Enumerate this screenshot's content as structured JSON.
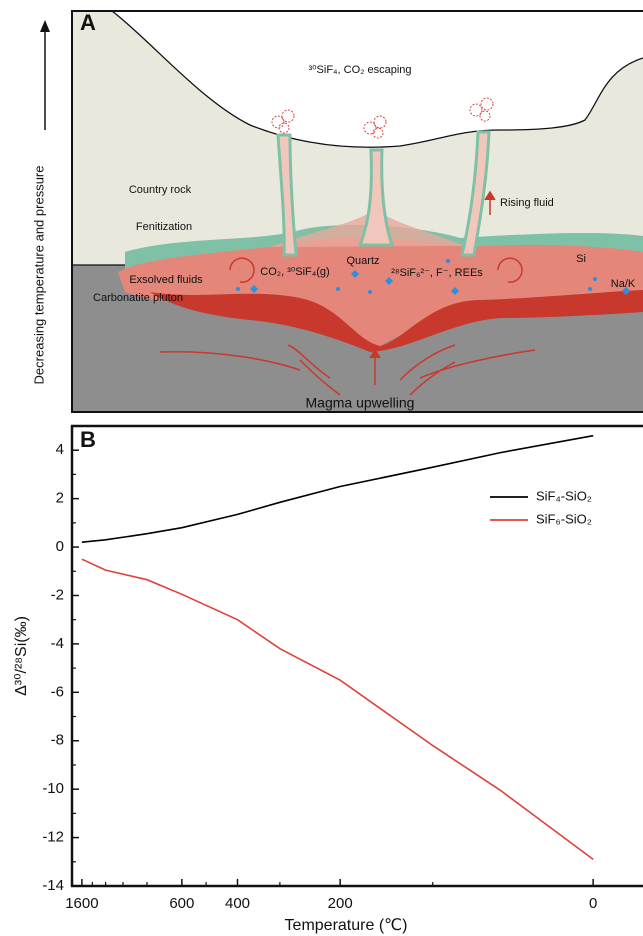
{
  "diagram": {
    "panel_label": "A",
    "side_label": "Decreasing temperature and pressure",
    "labels": {
      "escaping": "³⁰SiF₄, CO₂ escaping",
      "country_rock": "Country rock",
      "fenitization": "Fenitization",
      "exsolved": "Exsolved fluids",
      "pluton": "Carbonatite pluton",
      "gas": "CO₂, ³⁰SiF₄(g)",
      "quartz": "Quartz",
      "complex": "²⁸SiF₆²⁻, F⁻, REEs",
      "rising": "Rising fluid",
      "si": "Si",
      "nak": "Na/K",
      "magma": "Magma upwelling"
    }
  },
  "chart_data": {
    "type": "line",
    "panel_label": "B",
    "x_label": "Temperature (℃)",
    "y_label": "Δ³⁰/²⁸Si(‰)",
    "xscale": "inverse-kelvin",
    "x": [
      1600,
      1200,
      800,
      600,
      400,
      300,
      200,
      100,
      50,
      0
    ],
    "series": [
      {
        "name": "SiF₄-SiO₂",
        "color": "#000000",
        "values": [
          0.2,
          0.3,
          0.55,
          0.8,
          1.35,
          1.85,
          2.5,
          3.3,
          3.9,
          4.6
        ]
      },
      {
        "name": "SiF₆-SiO₂",
        "color": "#e0403a",
        "values": [
          -0.5,
          -0.95,
          -1.35,
          -1.95,
          -3.0,
          -4.2,
          -5.5,
          -8.2,
          -10.05,
          -12.9
        ]
      }
    ],
    "xlim": [
      1840,
      -21
    ],
    "ylim": [
      -14,
      5
    ],
    "xticks": [
      1600,
      600,
      400,
      200,
      0
    ],
    "xminorticks": [
      1400,
      1200,
      1000,
      800,
      500,
      300,
      100
    ],
    "yticks": [
      -14,
      -12,
      -10,
      -8,
      -6,
      -4,
      -2,
      0,
      2,
      4
    ],
    "yminorticks": [
      -13,
      -11,
      -9,
      -7,
      -5,
      -3,
      -1,
      1,
      3,
      5
    ],
    "legend": "upper right"
  }
}
